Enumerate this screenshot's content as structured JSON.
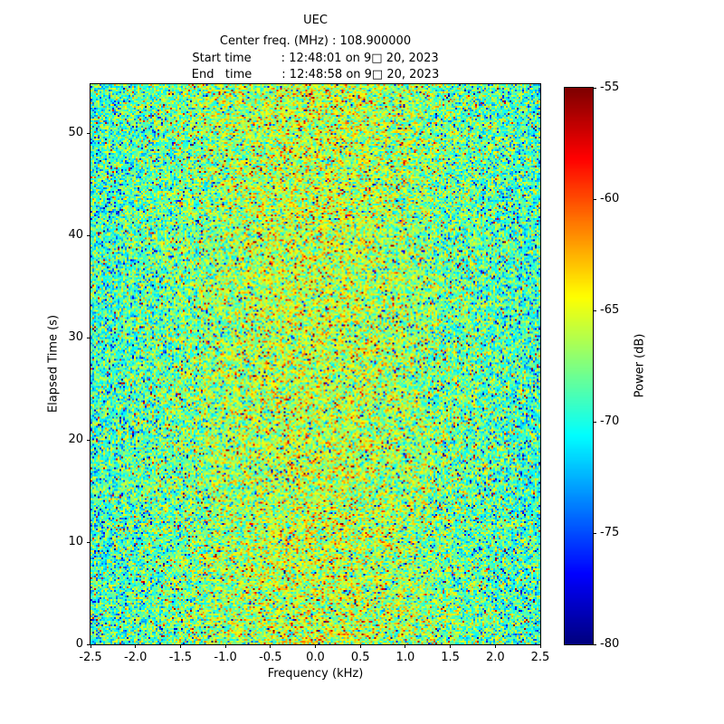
{
  "colors": {
    "background": "#ffffff",
    "text": "#000000",
    "axis": "#000000"
  },
  "header": {
    "title": "UEC",
    "center_freq_line": "Center freq. (MHz) : 108.900000",
    "start_time_line": "Start time        : 12:48:01 on 9□ 20, 2023",
    "end_time_line": "End   time        : 12:48:58 on 9□ 20, 2023"
  },
  "chart_data": {
    "type": "heatmap",
    "title": "UEC",
    "subtitle_lines": [
      "Center freq. (MHz) : 108.900000",
      "Start time        : 12:48:01 on 9□ 20, 2023",
      "End   time        : 12:48:58 on 9□ 20, 2023"
    ],
    "center_frequency_mhz": 108.9,
    "start_time": "12:48:01 on 9□ 20, 2023",
    "end_time": "12:48:58 on 9□ 20, 2023",
    "xlabel": "Frequency (kHz)",
    "ylabel": "Elapsed Time (s)",
    "xlim": [
      -2.5,
      2.5
    ],
    "ylim": [
      0,
      54.8
    ],
    "x_ticks": {
      "values": [
        -2.5,
        -2.0,
        -1.5,
        -1.0,
        -0.5,
        0.0,
        0.5,
        1.0,
        1.5,
        2.0,
        2.5
      ],
      "labels": [
        "-2.5",
        "-2.0",
        "-1.5",
        "-1.0",
        "-0.5",
        "0.0",
        "0.5",
        "1.0",
        "1.5",
        "2.0",
        "2.5"
      ]
    },
    "y_ticks": {
      "values": [
        0,
        10,
        20,
        30,
        40,
        50
      ],
      "labels": [
        "0",
        "10",
        "20",
        "30",
        "40",
        "50"
      ]
    },
    "colorbar": {
      "label": "Power (dB)",
      "colormap": "jet",
      "vmin": -80,
      "vmax": -55,
      "ticks": {
        "values": [
          -55,
          -60,
          -65,
          -70,
          -75,
          -80
        ],
        "labels": [
          "-55",
          "-60",
          "-65",
          "-70",
          "-75",
          "-80"
        ]
      }
    },
    "noise_model": {
      "description": "Random RF noise spectrogram; warmer (yellow/orange) toward center frequency, cooler (cyan/blue) at band edges, sparse hot (red) and cold (dark blue) speckles.",
      "seed": 20230920,
      "cols": 249,
      "rows": 310,
      "edge_mean_db": -70.0,
      "center_mean_db": -66.0,
      "center_sigma_frac": 0.28,
      "sd_db": 2.9,
      "low_outlier_prob": 0.02,
      "high_outlier_prob": 0.012
    }
  }
}
